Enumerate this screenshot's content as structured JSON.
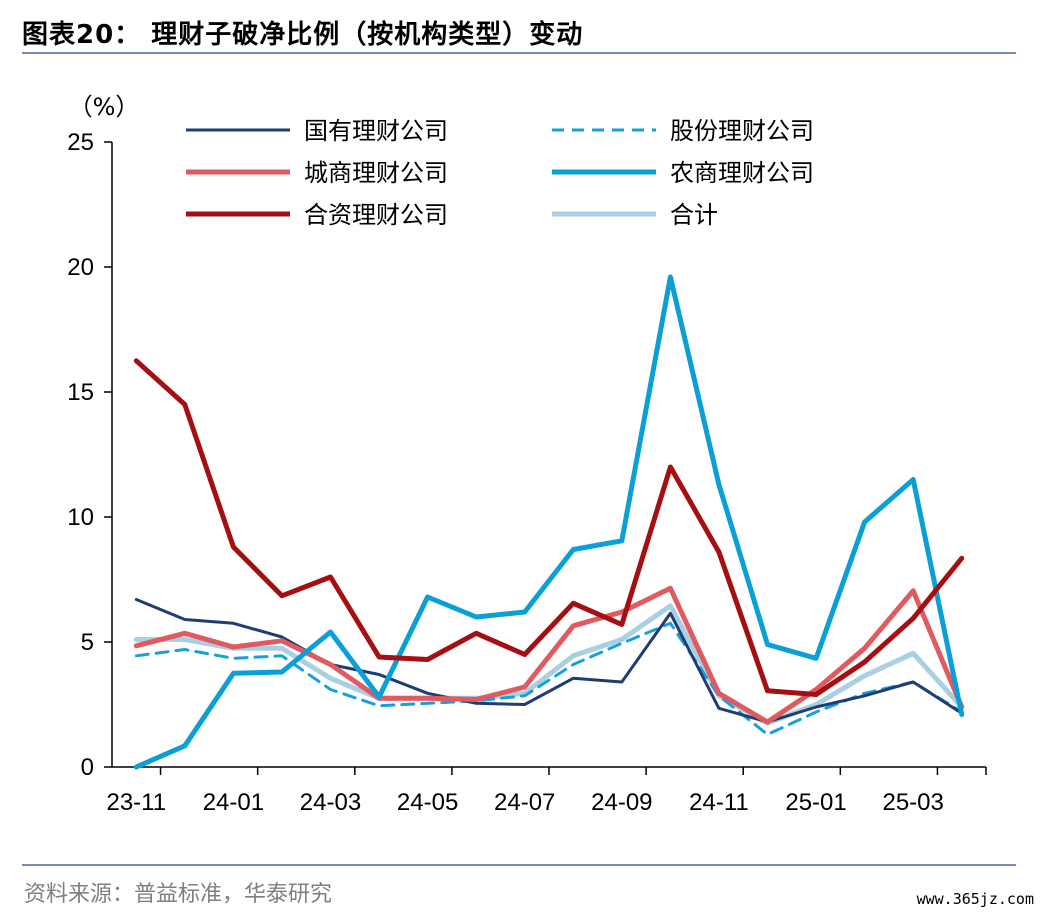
{
  "title": "图表20： 理财子破净比例（按机构类型）变动",
  "source": "资料来源：普益标准，华泰研究",
  "watermark": "www.365jz.com",
  "chart_data": {
    "type": "line",
    "ylabel": "（%）",
    "ylim": [
      0,
      25
    ],
    "yticks": [
      "0",
      "5",
      "10",
      "15",
      "20",
      "25"
    ],
    "x": [
      "23-11",
      "23-12",
      "24-01",
      "24-02",
      "24-03",
      "24-04",
      "24-05",
      "24-06",
      "24-07",
      "24-08",
      "24-09",
      "24-10",
      "24-11",
      "24-12",
      "25-01",
      "25-02",
      "25-03",
      "25-04"
    ],
    "xtick_labels": [
      "23-11",
      "24-01",
      "24-03",
      "24-05",
      "24-07",
      "24-09",
      "24-11",
      "25-01",
      "25-03"
    ],
    "grid": false,
    "legend": "top",
    "series": [
      {
        "name": "国有理财公司",
        "color": "#1f3c73",
        "dash": false,
        "width": 3,
        "values": [
          6.7,
          5.9,
          5.75,
          5.2,
          4.1,
          3.7,
          2.95,
          2.55,
          2.5,
          3.55,
          3.4,
          6.15,
          2.35,
          1.8,
          2.4,
          2.85,
          3.4,
          2.15
        ]
      },
      {
        "name": "股份理财公司",
        "color": "#1aa0d8",
        "dash": true,
        "width": 3,
        "values": [
          4.45,
          4.7,
          4.35,
          4.45,
          3.1,
          2.45,
          2.55,
          2.65,
          2.85,
          4.1,
          4.95,
          5.75,
          2.85,
          1.3,
          2.2,
          2.95,
          3.4,
          2.2
        ]
      },
      {
        "name": "城商理财公司",
        "color": "#e05a5f",
        "dash": false,
        "width": 5,
        "values": [
          4.85,
          5.35,
          4.8,
          5.05,
          4.1,
          2.75,
          2.75,
          2.7,
          3.2,
          5.65,
          6.2,
          7.15,
          2.95,
          1.8,
          3.1,
          4.75,
          7.05,
          2.4
        ]
      },
      {
        "name": "农商理财公司",
        "color": "#0a9fd6",
        "dash": false,
        "width": 5,
        "values": [
          0,
          0.85,
          3.75,
          3.8,
          5.4,
          2.8,
          6.8,
          6.0,
          6.2,
          8.7,
          9.05,
          19.6,
          11.3,
          4.9,
          4.35,
          9.8,
          11.5,
          2.1
        ]
      },
      {
        "name": "合资理财公司",
        "color": "#a50f12",
        "dash": false,
        "width": 5,
        "values": [
          16.25,
          14.5,
          8.8,
          6.85,
          7.6,
          4.4,
          4.3,
          5.35,
          4.5,
          6.55,
          5.7,
          12.0,
          8.6,
          3.05,
          2.9,
          4.2,
          5.95,
          8.35
        ]
      },
      {
        "name": "合计",
        "color": "#a9cfe3",
        "dash": false,
        "width": 5,
        "values": [
          5.1,
          5.1,
          4.75,
          4.75,
          3.55,
          2.75,
          2.75,
          2.75,
          2.95,
          4.45,
          5.1,
          6.45,
          2.85,
          1.75,
          2.5,
          3.65,
          4.55,
          2.4
        ]
      }
    ]
  }
}
